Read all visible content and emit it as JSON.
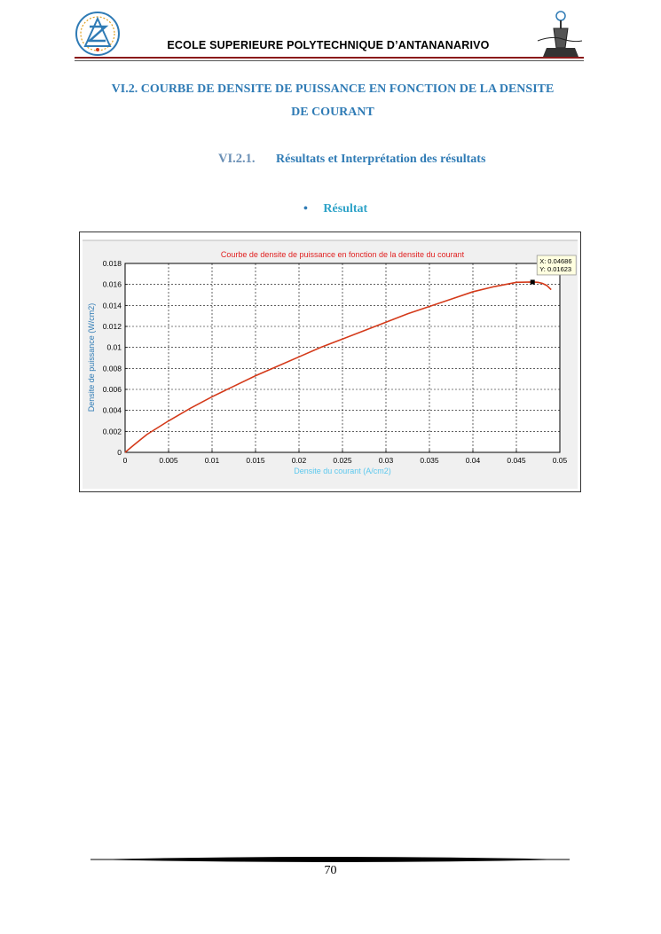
{
  "header": {
    "school_name": "ECOLE SUPERIEURE POLYTECHNIQUE D’ANTANANARIVO"
  },
  "section": {
    "title_line1": "VI.2. COURBE DE DENSITE DE PUISSANCE EN FONCTION DE LA DENSITE",
    "title_line2": "DE COURANT"
  },
  "subsection": {
    "number": "VI.2.1.",
    "title": "Résultats et Interprétation des résultats"
  },
  "bullet": {
    "label": "Résultat"
  },
  "chart_data": {
    "type": "line",
    "title": "Courbe de densite de puissance en fonction de la densite du courant",
    "xlabel": "Densite du courant (A/cm2)",
    "ylabel": "Densite de puissance (W/cm2)",
    "xlim": [
      0,
      0.05
    ],
    "ylim": [
      0,
      0.018
    ],
    "xticks": [
      "0",
      "0.005",
      "0.01",
      "0.015",
      "0.02",
      "0.025",
      "0.03",
      "0.035",
      "0.04",
      "0.045",
      "0.05"
    ],
    "yticks": [
      "0",
      "0.002",
      "0.004",
      "0.006",
      "0.008",
      "0.01",
      "0.012",
      "0.014",
      "0.016",
      "0.018"
    ],
    "grid": true,
    "line_color": "#d43a1a",
    "title_color": "#e02020",
    "axis_label_color": "#2f7bb5",
    "xlabel_color": "#5bc8ee",
    "series": [
      {
        "x": [
          0,
          0.001,
          0.0025,
          0.005,
          0.0075,
          0.01,
          0.0125,
          0.015,
          0.0175,
          0.02,
          0.0225,
          0.025,
          0.0275,
          0.03,
          0.0325,
          0.035,
          0.0375,
          0.04,
          0.0425,
          0.045,
          0.04686,
          0.0475,
          0.048,
          0.0485,
          0.049
        ],
        "y": [
          0,
          0.0007,
          0.0017,
          0.003,
          0.0042,
          0.0053,
          0.0063,
          0.0073,
          0.0082,
          0.0091,
          0.01,
          0.0108,
          0.0116,
          0.0124,
          0.0132,
          0.0139,
          0.0146,
          0.0153,
          0.0158,
          0.0162,
          0.01623,
          0.0162,
          0.0161,
          0.0159,
          0.0155
        ]
      }
    ],
    "datatip": {
      "x": 0.04686,
      "y": 0.01623,
      "x_label": "X: 0.04686",
      "y_label": "Y: 0.01623"
    }
  },
  "footer": {
    "page_number": "70"
  }
}
